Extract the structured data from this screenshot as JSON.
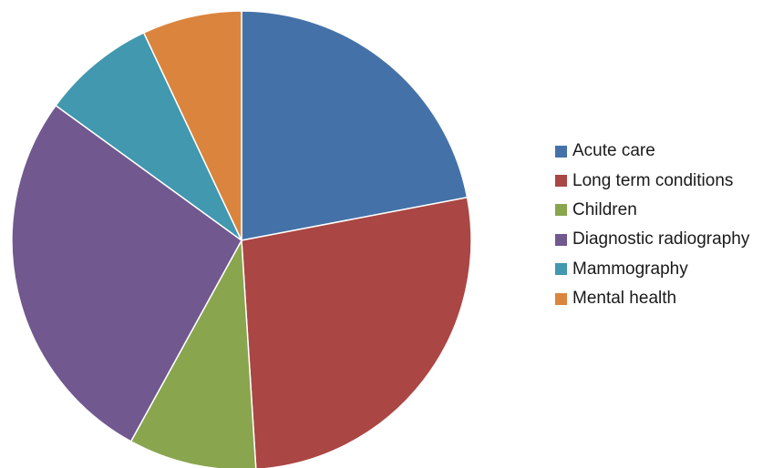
{
  "chart_data": {
    "type": "pie",
    "title": "",
    "categories": [
      "Acute care",
      "Long term conditions",
      "Children",
      "Diagnostic radiography",
      "Mammography",
      "Mental health"
    ],
    "values": [
      22,
      27,
      9,
      27,
      8,
      7
    ],
    "unit": "percent of total (estimated)",
    "colors": [
      "#4472A8",
      "#AA4643",
      "#89A54E",
      "#71588F",
      "#4198AF",
      "#DB843D"
    ],
    "legend_position": "right",
    "start_angle": "12 o'clock",
    "direction": "clockwise"
  }
}
